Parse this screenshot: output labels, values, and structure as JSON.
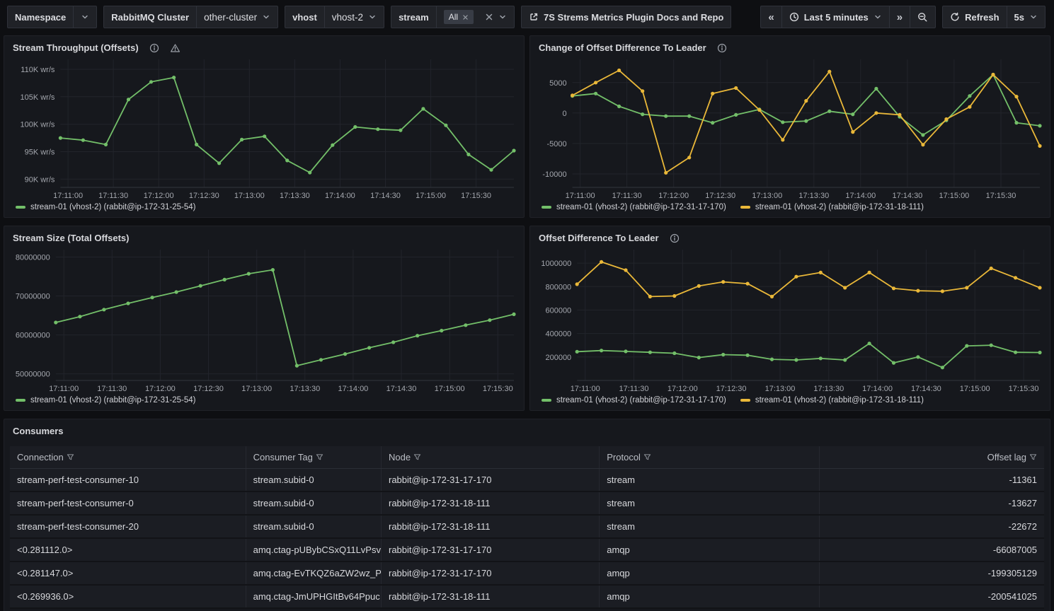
{
  "toolbar": {
    "namespace": {
      "label": "Namespace"
    },
    "cluster": {
      "label": "RabbitMQ Cluster",
      "value": "other-cluster"
    },
    "vhost": {
      "label": "vhost",
      "value": "vhost-2"
    },
    "stream": {
      "label": "stream",
      "selected_chip": "All"
    },
    "docs_link_label": "7S Strems Metrics Plugin Docs and Repo",
    "time_range": "Last 5 minutes",
    "refresh_label": "Refresh",
    "refresh_interval": "5s"
  },
  "colors": {
    "green": "#73bf69",
    "yellow": "#eab839"
  },
  "panels": {
    "throughput": {
      "title": "Stream Throughput (Offsets)",
      "legend": [
        {
          "label": "stream-01 (vhost-2) (rabbit@ip-172-31-25-54)",
          "color": "#73bf69"
        }
      ]
    },
    "change_offset": {
      "title": "Change of Offset Difference To Leader",
      "legend": [
        {
          "label": "stream-01 (vhost-2) (rabbit@ip-172-31-17-170)",
          "color": "#73bf69"
        },
        {
          "label": "stream-01 (vhost-2) (rabbit@ip-172-31-18-111)",
          "color": "#eab839"
        }
      ]
    },
    "stream_size": {
      "title": "Stream Size (Total Offsets)",
      "legend": [
        {
          "label": "stream-01 (vhost-2) (rabbit@ip-172-31-25-54)",
          "color": "#73bf69"
        }
      ]
    },
    "offset_diff": {
      "title": "Offset Difference To Leader",
      "legend": [
        {
          "label": "stream-01 (vhost-2) (rabbit@ip-172-31-17-170)",
          "color": "#73bf69"
        },
        {
          "label": "stream-01 (vhost-2) (rabbit@ip-172-31-18-111)",
          "color": "#eab839"
        }
      ]
    },
    "consumers": {
      "title": "Consumers",
      "columns": [
        {
          "label": "Connection",
          "align": "left"
        },
        {
          "label": "Consumer Tag",
          "align": "left"
        },
        {
          "label": "Node",
          "align": "left"
        },
        {
          "label": "Protocol",
          "align": "left"
        },
        {
          "label": "Offset lag",
          "align": "right"
        }
      ],
      "rows": [
        [
          "stream-perf-test-consumer-10",
          "stream.subid-0",
          "rabbit@ip-172-31-17-170",
          "stream",
          "-11361"
        ],
        [
          "stream-perf-test-consumer-0",
          "stream.subid-0",
          "rabbit@ip-172-31-18-111",
          "stream",
          "-13627"
        ],
        [
          "stream-perf-test-consumer-20",
          "stream.subid-0",
          "rabbit@ip-172-31-18-111",
          "stream",
          "-22672"
        ],
        [
          "<0.281112.0>",
          "amq.ctag-pUBybCSxQ11LvPsv",
          "rabbit@ip-172-31-17-170",
          "amqp",
          "-66087005"
        ],
        [
          "<0.281147.0>",
          "amq.ctag-EvTKQZ6aZW2wz_P",
          "rabbit@ip-172-31-17-170",
          "amqp",
          "-199305129"
        ],
        [
          "<0.269936.0>",
          "amq.ctag-JmUPHGItBv64Ppuc",
          "rabbit@ip-172-31-18-111",
          "amqp",
          "-200541025"
        ]
      ]
    }
  },
  "chart_data": [
    {
      "type": "line",
      "panel": "throughput",
      "title": "Stream Throughput (Offsets)",
      "x_ticks": [
        "17:11:00",
        "17:11:30",
        "17:12:00",
        "17:12:30",
        "17:13:00",
        "17:13:30",
        "17:14:00",
        "17:14:30",
        "17:15:00",
        "17:15:30"
      ],
      "yticks": [
        90000,
        95000,
        100000,
        105000,
        110000
      ],
      "ytick_labels": [
        "90K wr/s",
        "95K wr/s",
        "100K wr/s",
        "105K wr/s",
        "110K wr/s"
      ],
      "ylim": [
        88500,
        111800
      ],
      "series": [
        {
          "name": "stream-01 (vhost-2) (rabbit@ip-172-31-25-54)",
          "color": "#73bf69",
          "values": [
            97500,
            97100,
            96300,
            104500,
            107700,
            108500,
            96300,
            92900,
            97200,
            97800,
            93400,
            91200,
            96200,
            99500,
            99100,
            98900,
            102800,
            99800,
            94500,
            91700,
            95200
          ]
        }
      ]
    },
    {
      "type": "line",
      "panel": "change_offset",
      "title": "Change of Offset Difference To Leader",
      "x_ticks": [
        "17:11:00",
        "17:11:30",
        "17:12:00",
        "17:12:30",
        "17:13:00",
        "17:13:30",
        "17:14:00",
        "17:14:30",
        "17:15:00",
        "17:15:30"
      ],
      "yticks": [
        -10000,
        -5000,
        0,
        5000
      ],
      "ytick_labels": [
        "-10000",
        "-5000",
        "0",
        "5000"
      ],
      "ylim": [
        -12200,
        8800
      ],
      "series": [
        {
          "name": "stream-01 (vhost-2) (rabbit@ip-172-31-17-170)",
          "color": "#73bf69",
          "values": [
            2800,
            3200,
            1100,
            -200,
            -500,
            -500,
            -1600,
            -300,
            600,
            -1500,
            -1300,
            300,
            -200,
            4000,
            -600,
            -3600,
            -1200,
            2800,
            6300,
            -1600,
            -2100
          ]
        },
        {
          "name": "stream-01 (vhost-2) (rabbit@ip-172-31-18-111)",
          "color": "#eab839",
          "values": [
            2900,
            5000,
            7000,
            3600,
            -9800,
            -7300,
            3200,
            4100,
            500,
            -4400,
            2000,
            6800,
            -3100,
            0,
            -300,
            -5200,
            -1000,
            1000,
            6300,
            2700,
            -5400
          ]
        }
      ]
    },
    {
      "type": "line",
      "panel": "stream_size",
      "title": "Stream Size (Total Offsets)",
      "x_ticks": [
        "17:11:00",
        "17:11:30",
        "17:12:00",
        "17:12:30",
        "17:13:00",
        "17:13:30",
        "17:14:00",
        "17:14:30",
        "17:15:00",
        "17:15:30"
      ],
      "yticks": [
        50000000,
        60000000,
        70000000,
        80000000
      ],
      "ytick_labels": [
        "50000000",
        "60000000",
        "70000000",
        "80000000"
      ],
      "ylim": [
        48300000,
        81900000
      ],
      "series": [
        {
          "name": "stream-01 (vhost-2) (rabbit@ip-172-31-25-54)",
          "color": "#73bf69",
          "values": [
            63200000,
            64700000,
            66500000,
            68100000,
            69600000,
            71000000,
            72600000,
            74200000,
            75700000,
            76700000,
            52100000,
            53600000,
            55100000,
            56700000,
            58100000,
            59800000,
            61100000,
            62500000,
            63800000,
            65300000
          ]
        }
      ]
    },
    {
      "type": "line",
      "panel": "offset_diff",
      "title": "Offset Difference To Leader",
      "x_ticks": [
        "17:11:00",
        "17:11:30",
        "17:12:00",
        "17:12:30",
        "17:13:00",
        "17:13:30",
        "17:14:00",
        "17:14:30",
        "17:15:00",
        "17:15:30"
      ],
      "yticks": [
        200000,
        400000,
        600000,
        800000,
        1000000
      ],
      "ytick_labels": [
        "200000",
        "400000",
        "600000",
        "800000",
        "1000000"
      ],
      "ylim": [
        0,
        1115000
      ],
      "series": [
        {
          "name": "stream-01 (vhost-2) (rabbit@ip-172-31-17-170)",
          "color": "#73bf69",
          "values": [
            245000,
            255000,
            248000,
            240000,
            232000,
            195000,
            220000,
            215000,
            180000,
            175000,
            188000,
            175000,
            315000,
            150000,
            200000,
            110000,
            295000,
            300000,
            240000,
            238000
          ]
        },
        {
          "name": "stream-01 (vhost-2) (rabbit@ip-172-31-18-111)",
          "color": "#eab839",
          "values": [
            820000,
            1010000,
            940000,
            715000,
            720000,
            805000,
            840000,
            825000,
            715000,
            885000,
            920000,
            790000,
            920000,
            785000,
            765000,
            760000,
            790000,
            955000,
            875000,
            790000
          ]
        }
      ]
    }
  ]
}
